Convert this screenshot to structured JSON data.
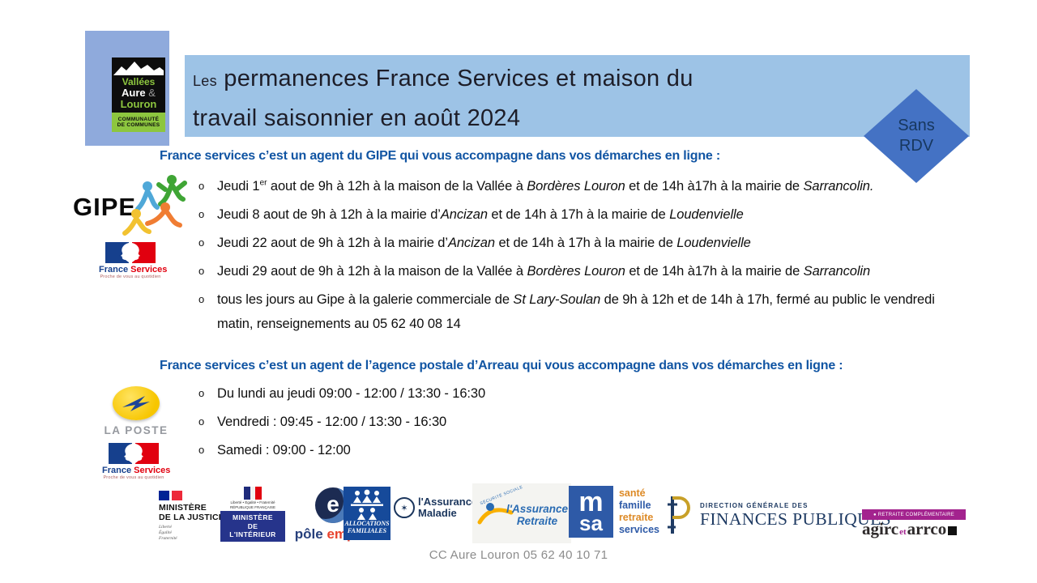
{
  "colors": {
    "banner": "#9DC3E6",
    "org_square": "#8FAADC",
    "badge": "#4472C4",
    "badge_text": "#17375E",
    "heading_blue": "#1155A3",
    "footer_gray": "#8C8C8C"
  },
  "title": {
    "les": "Les",
    "line1": " permanences France Services et maison du",
    "line2": "travail saisonnier en août 2024"
  },
  "badge": {
    "line1": "Sans",
    "line2": "RDV"
  },
  "org": {
    "l1": "Vallées",
    "l2": "Aure",
    "amp": "&",
    "l3": "Louron",
    "b1": "COMMUNAUTÉ",
    "b2": "DE COMMUNES"
  },
  "gipe_logo": {
    "text": "GIPE"
  },
  "fs": {
    "f": "France",
    "s": "Services",
    "tag": "Proche de vous au quotidien"
  },
  "laposte": {
    "text": "LA POSTE"
  },
  "sections": {
    "gipe": {
      "heading": "France services c’est un agent du GIPE qui vous accompagne dans vos démarches en ligne :",
      "bullets": [
        [
          {
            "t": "Jeudi 1"
          },
          {
            "t": "er",
            "sup": true
          },
          {
            "t": " aout de 9h à 12h à la maison de la Vallée à "
          },
          {
            "t": "Bordères Louron ",
            "i": true
          },
          {
            "t": "et de 14h à17h à la mairie de "
          },
          {
            "t": "Sarrancolin.",
            "i": true
          }
        ],
        [
          {
            "t": "Jeudi 8 aout  de 9h à 12h à la mairie d’"
          },
          {
            "t": "Ancizan ",
            "i": true
          },
          {
            "t": "et de 14h à 17h à la mairie de "
          },
          {
            "t": "Loudenvielle",
            "i": true
          }
        ],
        [
          {
            "t": "Jeudi 22 aout de 9h à 12h à la mairie d’"
          },
          {
            "t": "Ancizan ",
            "i": true
          },
          {
            "t": "et de 14h à 17h à la mairie de "
          },
          {
            "t": "Loudenvielle",
            "i": true
          }
        ],
        [
          {
            "t": "Jeudi 29 aout de 9h à 12h à la maison de la Vallée à "
          },
          {
            "t": "Bordères Louron ",
            "i": true
          },
          {
            "t": "et de 14h à17h à la mairie de "
          },
          {
            "t": "Sarrancolin",
            "i": true
          }
        ],
        [
          {
            "t": "tous les jours  au Gipe à la galerie commerciale de "
          },
          {
            "t": "St Lary-Soulan ",
            "i": true
          },
          {
            "t": "de 9h à 12h et de 14h à 17h, fermé au public le vendredi matin, renseignements au 05 62 40 08 14"
          }
        ]
      ]
    },
    "poste": {
      "heading": "France services c’est un agent de l’agence postale d’Arreau qui vous accompagne dans vos démarches en ligne :",
      "bullets": [
        [
          {
            "t": "Du lundi au jeudi   09:00 - 12:00 / 13:30 - 16:30"
          }
        ],
        [
          {
            "t": "Vendredi : 09:45 - 12:00 / 13:30 - 16:30"
          }
        ],
        [
          {
            "t": "Samedi : 09:00 - 12:00"
          }
        ]
      ]
    }
  },
  "partners": {
    "justice": {
      "l1": "MINISTÈRE",
      "l2": "DE LA JUSTICE",
      "motto": [
        "Liberté",
        "Égalité",
        "Fraternité"
      ]
    },
    "interieur": {
      "t1": "Liberté • Égalité • Fraternité",
      "t2": "RÉPUBLIQUE FRANÇAISE",
      "l1": "MINISTÈRE",
      "l2": "DE",
      "l3": "L'INTÉRIEUR"
    },
    "pole": {
      "e": "e",
      "n1": "pôle ",
      "n2": "emploi"
    },
    "caf": {
      "l1": "ALLOCATIONS",
      "l2": "FAMILIALES"
    },
    "maladie": {
      "n1": "l'Assurance",
      "n2": "Maladie"
    },
    "retraite": {
      "arc": "SÉCURITÉ SOCIALE",
      "n1": "l'Assurance",
      "n2": "Retraite"
    },
    "msa": {
      "m": "m",
      "sa": "sa",
      "words": [
        "santé",
        "famille",
        "retraite",
        "services"
      ]
    },
    "dgfip": {
      "small": "DIRECTION GÉNÉRALE DES",
      "big": "FINANCES PUBLIQUES"
    },
    "agirc": {
      "banner": "● RETRAITE COMPLÉMENTAIRE",
      "n1": "agirc",
      "et": "et",
      "n2": "arrco"
    }
  },
  "footer": {
    "text": "CC Aure Louron  05 62 40 10 71"
  }
}
